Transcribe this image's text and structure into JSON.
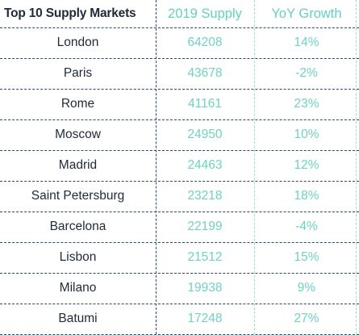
{
  "chart_data": {
    "type": "table",
    "columns": [
      "Top 10 Supply Markets",
      "2019 Supply",
      "YoY Growth"
    ],
    "rows": [
      {
        "market": "London",
        "supply": "64208",
        "growth": "14%"
      },
      {
        "market": "Paris",
        "supply": "43678",
        "growth": "-2%"
      },
      {
        "market": "Rome",
        "supply": "41161",
        "growth": "23%"
      },
      {
        "market": "Moscow",
        "supply": "24950",
        "growth": "10%"
      },
      {
        "market": "Madrid",
        "supply": "24463",
        "growth": "12%"
      },
      {
        "market": "Saint Petersburg",
        "supply": "23218",
        "growth": "18%"
      },
      {
        "market": "Barcelona",
        "supply": "22199",
        "growth": "-4%"
      },
      {
        "market": "Lisbon",
        "supply": "21512",
        "growth": "15%"
      },
      {
        "market": "Milano",
        "supply": "19938",
        "growth": "9%"
      },
      {
        "market": "Batumi",
        "supply": "17248",
        "growth": "27%"
      }
    ]
  },
  "colors": {
    "header_dark": "#1f2a36",
    "accent_teal": "#63d1bf",
    "divider": "#2f4a5c"
  }
}
